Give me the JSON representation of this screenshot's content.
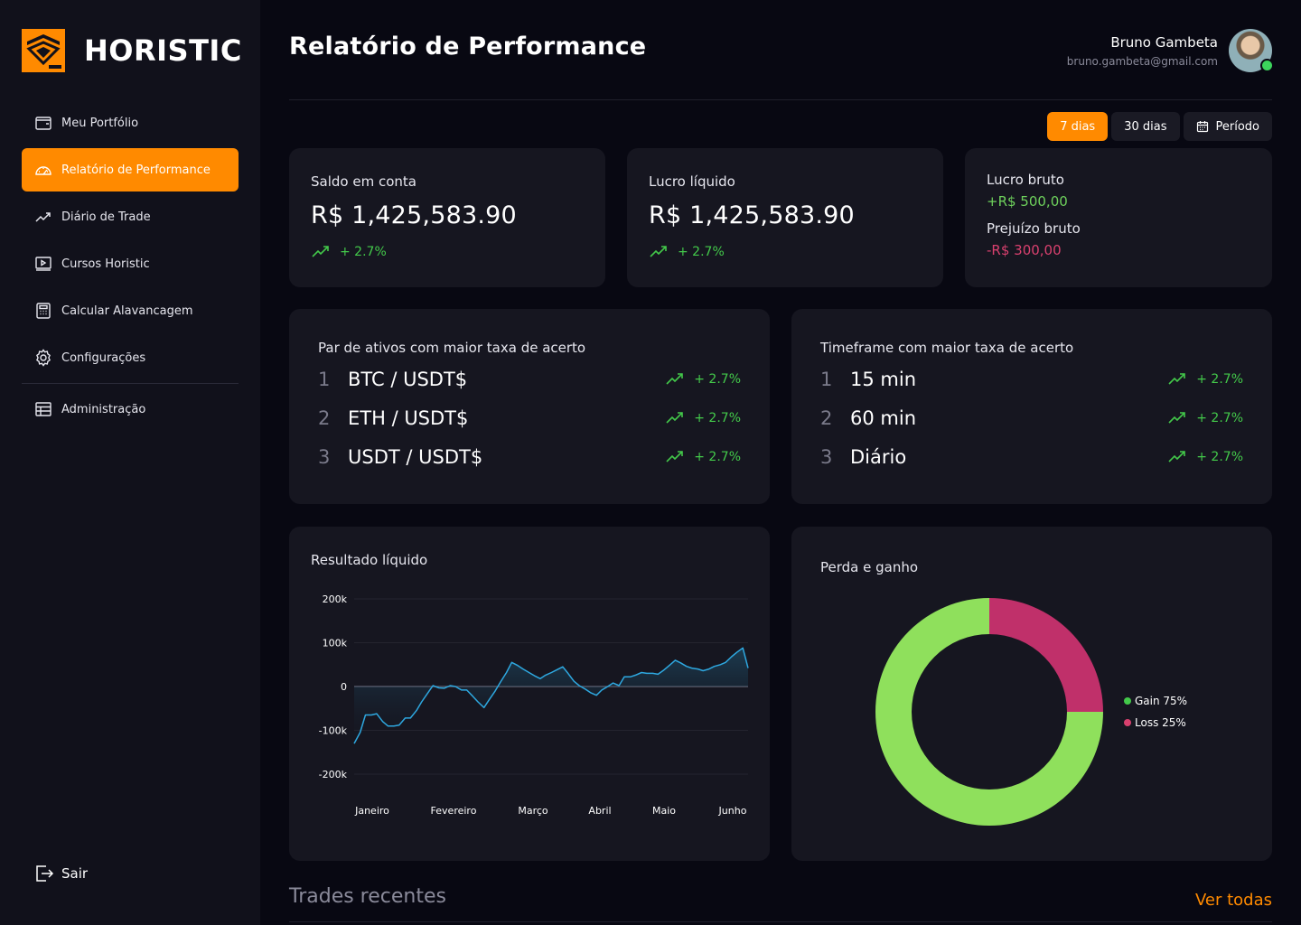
{
  "brand": {
    "name": "HORISTIC",
    "accent": "#ff8a00"
  },
  "sidebar": {
    "items": [
      {
        "label": "Meu Portfólio",
        "icon": "wallet-icon"
      },
      {
        "label": "Relatório de Performance",
        "icon": "gauge-icon",
        "active": true
      },
      {
        "label": "Diário de Trade",
        "icon": "trending-up-icon"
      },
      {
        "label": "Cursos Horistic",
        "icon": "video-icon"
      },
      {
        "label": "Calcular Alavancagem",
        "icon": "calculator-icon"
      },
      {
        "label": "Configurações",
        "icon": "gear-icon"
      },
      {
        "label": "Administração",
        "icon": "table-icon"
      }
    ],
    "logout_label": "Sair"
  },
  "header": {
    "title": "Relatório de Performance",
    "user": {
      "name": "Bruno Gambeta",
      "email": "bruno.gambeta@gmail.com"
    }
  },
  "filters": {
    "seven_days": "7 dias",
    "thirty_days": "30 dias",
    "period": "Período"
  },
  "stats": {
    "balance": {
      "label": "Saldo em conta",
      "value": "R$ 1,425,583.90",
      "change": "+ 2.7%"
    },
    "net_profit": {
      "label": "Lucro líquido",
      "value": "R$ 1,425,583.90",
      "change": "+ 2.7%"
    },
    "gross": {
      "profit_label": "Lucro bruto",
      "profit_value": "+R$ 500,00",
      "loss_label": "Prejuízo bruto",
      "loss_value": "-R$ 300,00"
    }
  },
  "assets": {
    "title": "Par de ativos com maior taxa de acerto",
    "items": [
      {
        "rank": "1",
        "name": "BTC / USDT$",
        "change": "+ 2.7%"
      },
      {
        "rank": "2",
        "name": "ETH / USDT$",
        "change": "+ 2.7%"
      },
      {
        "rank": "3",
        "name": "USDT / USDT$",
        "change": "+ 2.7%"
      }
    ]
  },
  "timeframes": {
    "title": "Timeframe com maior taxa de acerto",
    "items": [
      {
        "rank": "1",
        "name": "15 min",
        "change": "+ 2.7%"
      },
      {
        "rank": "2",
        "name": "60 min",
        "change": "+ 2.7%"
      },
      {
        "rank": "3",
        "name": "Diário",
        "change": "+ 2.7%"
      }
    ]
  },
  "net_result_title": "Resultado líquido",
  "gain_loss_title": "Perda e ganho",
  "recent": {
    "title": "Trades recentes",
    "see_all": "Ver todas"
  },
  "chart_data": [
    {
      "type": "area",
      "title": "Resultado líquido",
      "categories": [
        "Janeiro",
        "Fevereiro",
        "Março",
        "Abril",
        "Maio",
        "Junho"
      ],
      "ylim": [
        -200000,
        200000
      ],
      "yticks": [
        "200k",
        "100k",
        "0",
        "-100k",
        "-200k"
      ],
      "ytick_values": [
        200000,
        100000,
        0,
        -100000,
        -200000
      ],
      "x": [
        0,
        0.08,
        0.15,
        0.23,
        0.3,
        0.38,
        0.45,
        0.53,
        0.6,
        0.68,
        0.75,
        0.83,
        0.9,
        0.98,
        1.05,
        1.13,
        1.2,
        1.28,
        1.35,
        1.43,
        1.5,
        1.58,
        1.65,
        1.73,
        1.8,
        1.88,
        1.95,
        2.03,
        2.1,
        2.18,
        2.25,
        2.33,
        2.4,
        2.48,
        2.55,
        2.63,
        2.7,
        2.78,
        2.85,
        2.93,
        3.0,
        3.08,
        3.15,
        3.23,
        3.3,
        3.38,
        3.45,
        3.53,
        3.6,
        3.68,
        3.75,
        3.83,
        3.9,
        3.98,
        4.05,
        4.13,
        4.2,
        4.28,
        4.35,
        4.43,
        4.5,
        4.58,
        4.65,
        4.73,
        4.8,
        4.88,
        4.95,
        5.03,
        5.1,
        5.18,
        5.25
      ],
      "values": [
        -130000,
        -105000,
        -65000,
        -65000,
        -62000,
        -80000,
        -90000,
        -90000,
        -88000,
        -72000,
        -72000,
        -55000,
        -35000,
        -15000,
        2000,
        -3000,
        -4000,
        2000,
        0,
        -8000,
        -8000,
        -22000,
        -35000,
        -48000,
        -30000,
        -10000,
        10000,
        32000,
        55000,
        48000,
        40000,
        32000,
        25000,
        18000,
        26000,
        32000,
        38000,
        45000,
        30000,
        12000,
        2000,
        -6000,
        -14000,
        -20000,
        -8000,
        0,
        8000,
        2000,
        22000,
        22000,
        26000,
        32000,
        30000,
        30000,
        28000,
        38000,
        48000,
        60000,
        54000,
        46000,
        42000,
        40000,
        36000,
        40000,
        46000,
        50000,
        55000,
        68000,
        78000,
        88000,
        42000
      ],
      "grid": true
    },
    {
      "type": "pie",
      "title": "Perda e ganho",
      "categories": [
        "Gain",
        "Loss"
      ],
      "values": [
        75,
        25
      ],
      "labels": [
        "Gain 75%",
        "Loss 25%"
      ],
      "colors": [
        "#8fe05c",
        "#c0306a"
      ],
      "legend": "right"
    }
  ]
}
